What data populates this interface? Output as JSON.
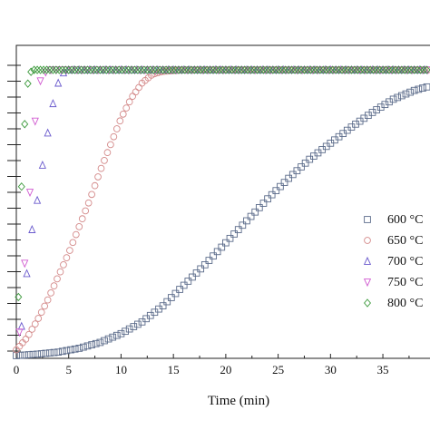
{
  "chart_data": {
    "type": "scatter",
    "title": "",
    "xlabel": "Time (min)",
    "ylabel": "",
    "xlim": [
      0,
      39.5
    ],
    "ylim": [
      0,
      1.0
    ],
    "x_ticks": [
      "0",
      "5",
      "10",
      "15",
      "20",
      "25",
      "30",
      "35"
    ],
    "x_tick_values": [
      0,
      5,
      10,
      15,
      20,
      25,
      30,
      35
    ],
    "legend_position": "right",
    "grid": false,
    "series": [
      {
        "name": "600 °C",
        "marker": "square",
        "color": "#5b6b8a",
        "x": [
          0,
          2,
          4,
          6,
          8,
          10,
          12,
          14,
          16,
          18,
          20,
          22,
          24,
          26,
          28,
          30,
          32,
          34,
          36,
          38,
          39.5
        ],
        "y": [
          0.0,
          0.005,
          0.012,
          0.025,
          0.045,
          0.075,
          0.115,
          0.17,
          0.24,
          0.31,
          0.385,
          0.46,
          0.535,
          0.605,
          0.67,
          0.725,
          0.78,
          0.83,
          0.875,
          0.905,
          0.92
        ]
      },
      {
        "name": "650 °C",
        "marker": "circle",
        "color": "#d48a8a",
        "x": [
          0,
          1,
          2,
          3,
          4,
          5,
          6,
          7,
          8,
          9,
          10,
          11,
          12,
          13,
          14,
          16,
          18,
          20,
          25,
          30,
          35,
          39.5
        ],
        "y": [
          0.02,
          0.06,
          0.12,
          0.19,
          0.27,
          0.35,
          0.44,
          0.53,
          0.63,
          0.72,
          0.81,
          0.88,
          0.93,
          0.96,
          0.97,
          0.975,
          0.975,
          0.975,
          0.975,
          0.975,
          0.975,
          0.975
        ]
      },
      {
        "name": "700 °C",
        "marker": "triangle-up",
        "color": "#6a5acd",
        "x": [
          0.5,
          1,
          1.5,
          2,
          2.5,
          3,
          3.5,
          4,
          4.5,
          5,
          6,
          8,
          10,
          15,
          20,
          25,
          30,
          35,
          39.5
        ],
        "y": [
          0.1,
          0.28,
          0.43,
          0.53,
          0.65,
          0.76,
          0.86,
          0.93,
          0.965,
          0.975,
          0.975,
          0.975,
          0.975,
          0.975,
          0.975,
          0.975,
          0.975,
          0.975,
          0.975
        ]
      },
      {
        "name": "750 °C",
        "marker": "triangle-down",
        "color": "#d05ad0",
        "x": [
          0.3,
          0.6,
          1,
          1.4,
          1.8,
          2.2,
          2.6,
          3,
          3.5,
          4,
          5,
          8,
          10,
          15,
          20,
          25,
          30,
          35,
          39.5
        ],
        "y": [
          0.08,
          0.2,
          0.43,
          0.6,
          0.8,
          0.93,
          0.96,
          0.975,
          0.975,
          0.975,
          0.975,
          0.975,
          0.975,
          0.975,
          0.975,
          0.975,
          0.975,
          0.975,
          0.975
        ]
      },
      {
        "name": "800 °C",
        "marker": "diamond",
        "color": "#3c9a3c",
        "x": [
          0.2,
          0.4,
          0.7,
          1,
          1.3,
          1.6,
          2,
          3,
          5,
          8,
          10,
          15,
          20,
          25,
          30,
          35,
          39.5
        ],
        "y": [
          0.2,
          0.5,
          0.73,
          0.91,
          0.965,
          0.975,
          0.975,
          0.975,
          0.975,
          0.975,
          0.975,
          0.975,
          0.975,
          0.975,
          0.975,
          0.975,
          0.975
        ]
      }
    ]
  }
}
